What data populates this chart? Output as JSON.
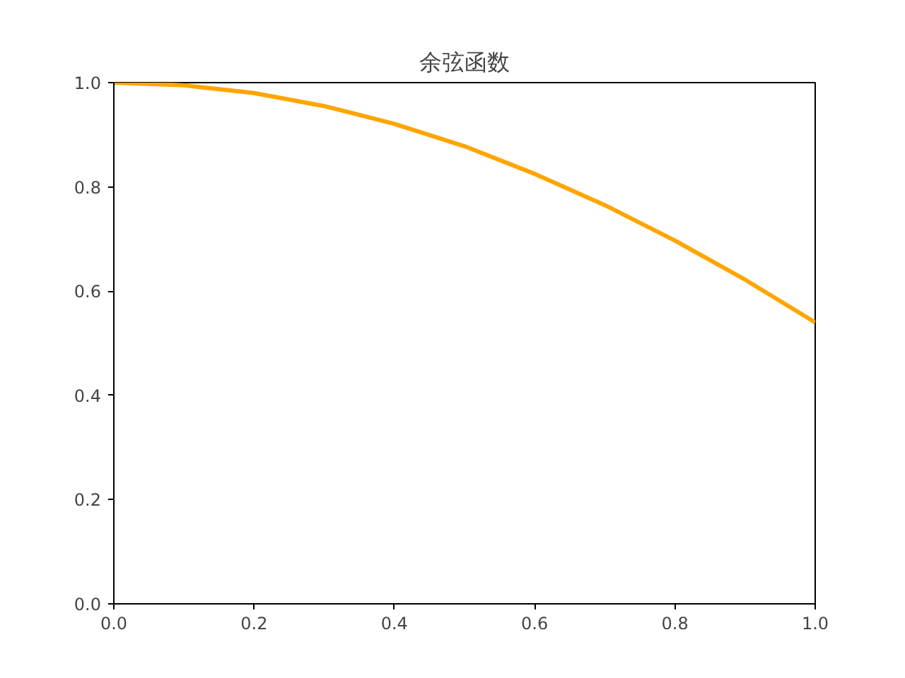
{
  "chart_data": {
    "type": "line",
    "title": "余弦函数",
    "x": [
      0.0,
      0.1,
      0.2,
      0.3,
      0.4,
      0.5,
      0.6,
      0.7,
      0.8,
      0.9,
      1.0
    ],
    "series": [
      {
        "color": "#ffa500",
        "values": [
          1.0,
          0.995,
          0.98,
          0.955,
          0.921,
          0.878,
          0.825,
          0.765,
          0.697,
          0.622,
          0.54
        ]
      }
    ],
    "xlim": [
      0,
      1
    ],
    "ylim": [
      0,
      1
    ],
    "xticks": [
      {
        "value": 0,
        "label": "0.0"
      },
      0.2,
      0.4,
      0.6,
      0.8,
      {
        "value": 1,
        "label": "1.0"
      }
    ],
    "yticks": [
      {
        "value": 0,
        "label": "0.0"
      },
      0.2,
      0.4,
      0.6,
      0.8,
      {
        "value": 1,
        "label": "1.0"
      }
    ],
    "grid": false
  }
}
